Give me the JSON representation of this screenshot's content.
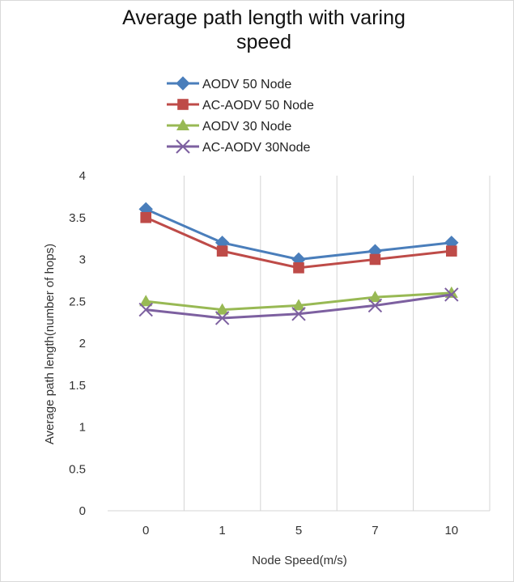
{
  "chart_data": {
    "type": "line",
    "title_line1": "Average path length with varing",
    "title_line2": "speed",
    "xlabel": "Node Speed(m/s)",
    "ylabel": "Average path length(number of hops)",
    "categories": [
      "0",
      "1",
      "5",
      "7",
      "10"
    ],
    "ylim": [
      0,
      4
    ],
    "yticks": [
      "0",
      "0.5",
      "1",
      "1.5",
      "2",
      "2.5",
      "3",
      "3.5",
      "4"
    ],
    "grid": "vertical",
    "legend_position": "top",
    "series": [
      {
        "name": "AODV 50 Node",
        "values": [
          3.6,
          3.2,
          3.0,
          3.1,
          3.2
        ],
        "color": "#4a7ebb",
        "marker": "diamond"
      },
      {
        "name": "AC-AODV 50 Node",
        "values": [
          3.5,
          3.1,
          2.9,
          3.0,
          3.1
        ],
        "color": "#be4b48",
        "marker": "square"
      },
      {
        "name": "AODV 30 Node",
        "values": [
          2.5,
          2.4,
          2.45,
          2.55,
          2.6
        ],
        "color": "#98b954",
        "marker": "triangle"
      },
      {
        "name": "AC-AODV 30Node",
        "values": [
          2.4,
          2.3,
          2.35,
          2.45,
          2.58
        ],
        "color": "#7d60a0",
        "marker": "x"
      }
    ]
  }
}
